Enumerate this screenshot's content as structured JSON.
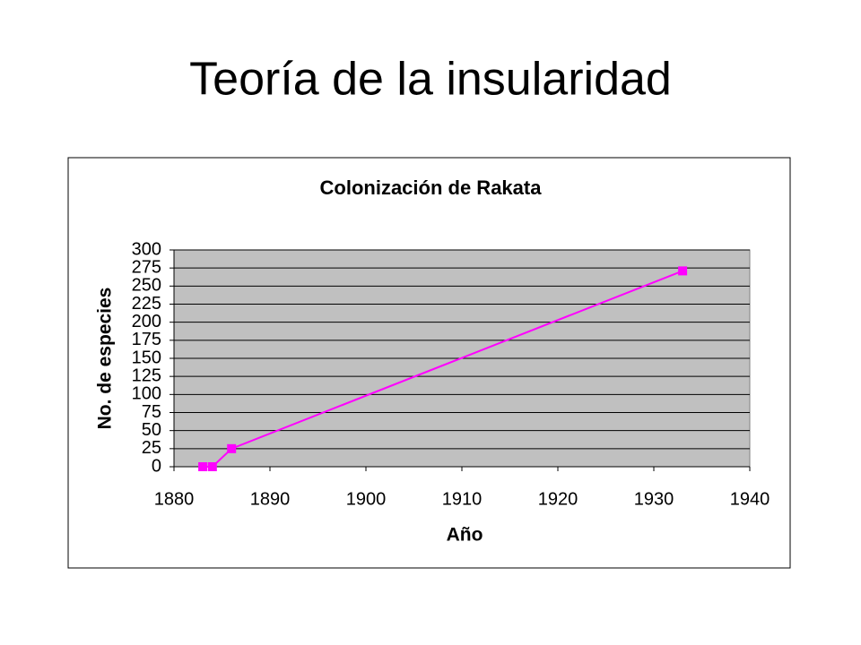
{
  "title": "Teoría de la insularidad",
  "chart_data": {
    "type": "line",
    "title": "Colonización de Rakata",
    "x_label": "Año",
    "y_label": "No. de especies",
    "series": [
      {
        "color": "#ff00ff",
        "x": [
          1883,
          1884,
          1886,
          1933
        ],
        "values": [
          0,
          0,
          25,
          271
        ]
      }
    ],
    "xlim": [
      1880,
      1940
    ],
    "xticks": [
      1880,
      1890,
      1900,
      1910,
      1920,
      1930,
      1940
    ],
    "ylim": [
      0,
      300
    ],
    "yticks": [
      0,
      25,
      50,
      75,
      100,
      125,
      150,
      175,
      200,
      225,
      250,
      275,
      300
    ],
    "grid": true,
    "plot_background": "#c0c0c0"
  }
}
